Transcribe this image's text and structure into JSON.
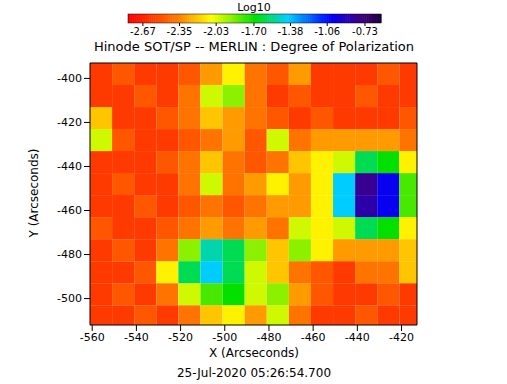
{
  "chart_data": {
    "type": "heatmap",
    "title": "Hinode SOT/SP -- MERLIN : Degree of Polarization",
    "subtitle": "25-Jul-2020 05:26:54.700",
    "x_label": "X (Arcseconds)",
    "y_label": "Y (Arcseconds)",
    "x": [
      -556,
      -546,
      -536,
      -526,
      -516,
      -506,
      -496,
      -486,
      -476,
      -466,
      -456,
      -446,
      -436,
      -426,
      -416
    ],
    "y": [
      -508,
      -498,
      -488,
      -478,
      -468,
      -458,
      -448,
      -438,
      -428,
      -418,
      -408,
      -398
    ],
    "values": [
      [
        -2.6,
        -2.6,
        -2.5,
        -2.6,
        -2.4,
        -2.2,
        -2.1,
        -2.3,
        -2.0,
        -2.4,
        -2.6,
        -2.6,
        -2.5,
        -2.6,
        -2.6
      ],
      [
        -2.6,
        -2.5,
        -2.6,
        -2.4,
        -2.0,
        -1.8,
        -1.7,
        -2.0,
        -1.9,
        -2.3,
        -2.5,
        -2.6,
        -2.6,
        -2.5,
        -2.6
      ],
      [
        -2.6,
        -2.6,
        -2.5,
        -2.1,
        -1.6,
        -1.4,
        -1.6,
        -2.0,
        -2.2,
        -2.4,
        -2.5,
        -2.6,
        -2.4,
        -2.4,
        -2.2
      ],
      [
        -2.6,
        -2.5,
        -2.6,
        -2.4,
        -1.9,
        -1.5,
        -1.6,
        -1.9,
        -2.2,
        -1.9,
        -2.1,
        -2.3,
        -2.3,
        -2.3,
        -2.2
      ],
      [
        -2.5,
        -2.6,
        -2.6,
        -2.5,
        -2.4,
        -2.3,
        -2.4,
        -2.3,
        -2.4,
        -2.0,
        -2.1,
        -2.0,
        -1.6,
        -1.7,
        -2.1
      ],
      [
        -2.6,
        -2.6,
        -2.5,
        -2.6,
        -2.5,
        -2.4,
        -2.5,
        -2.4,
        -2.3,
        -2.3,
        -2.1,
        -1.4,
        -0.85,
        -1.0,
        -1.8
      ],
      [
        -2.6,
        -2.5,
        -2.6,
        -2.6,
        -2.4,
        -2.0,
        -2.4,
        -2.3,
        -2.1,
        -2.3,
        -2.1,
        -1.4,
        -0.8,
        -1.0,
        -1.8
      ],
      [
        -2.6,
        -2.6,
        -2.6,
        -2.5,
        -2.4,
        -2.2,
        -2.4,
        -2.5,
        -2.4,
        -2.2,
        -2.1,
        -2.0,
        -1.6,
        -1.7,
        -2.1
      ],
      [
        -2.0,
        -2.5,
        -2.6,
        -2.6,
        -2.5,
        -2.4,
        -2.3,
        -2.5,
        -2.0,
        -2.4,
        -2.3,
        -2.3,
        -2.3,
        -2.3,
        -2.4
      ],
      [
        -2.2,
        -2.6,
        -2.6,
        -2.5,
        -2.4,
        -2.2,
        -2.3,
        -2.4,
        -2.5,
        -2.6,
        -2.5,
        -2.6,
        -2.6,
        -2.6,
        -2.5
      ],
      [
        -2.6,
        -2.6,
        -2.5,
        -2.6,
        -2.4,
        -2.0,
        -1.9,
        -2.4,
        -2.6,
        -2.5,
        -2.6,
        -2.6,
        -2.5,
        -2.6,
        -2.6
      ],
      [
        -2.6,
        -2.5,
        -2.6,
        -2.6,
        -2.5,
        -2.3,
        -2.1,
        -2.4,
        -2.5,
        -2.3,
        -2.6,
        -2.6,
        -2.6,
        -2.5,
        -2.6
      ]
    ],
    "xlim": [
      -561,
      -413
    ],
    "ylim": [
      -512,
      -393
    ],
    "xticks": [
      -560,
      -540,
      -520,
      -500,
      -480,
      -460,
      -440,
      -420
    ],
    "yticks": [
      -500,
      -480,
      -460,
      -440,
      -420,
      -400
    ],
    "colorbar": {
      "label": "Log10",
      "range": [
        -2.8,
        -0.59
      ],
      "ticks": [
        -2.67,
        -2.35,
        -2.03,
        {
          "value": -1.7,
          "label": "-1.70"
        },
        -1.38,
        -1.06,
        -0.73
      ]
    }
  }
}
